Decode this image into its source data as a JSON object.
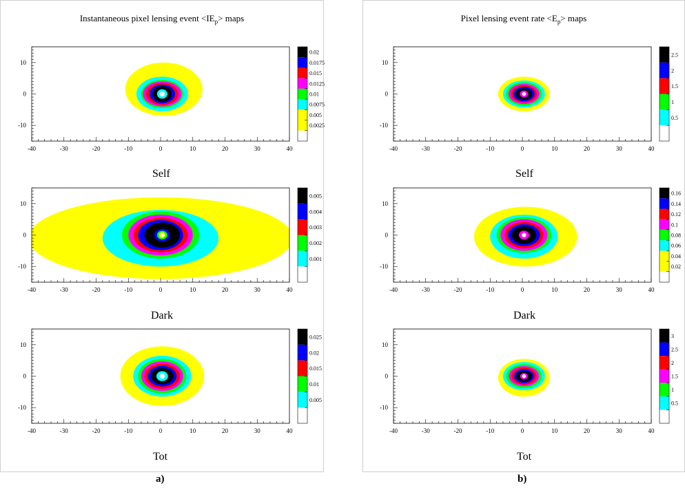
{
  "panels": [
    {
      "title": "Instantaneous pixel lensing event <IE",
      "title_sub": "p",
      "title_end": "> maps",
      "caption": "a)"
    },
    {
      "title": "Pixel lensing event rate <E",
      "title_sub": "p",
      "title_end": "> maps",
      "caption": "b)"
    }
  ],
  "chart_data": [
    {
      "type": "heatmap",
      "panel": "a",
      "label": "Self",
      "xlim": [
        -40,
        40
      ],
      "ylim": [
        -15,
        15
      ],
      "xticks": [
        -40,
        -30,
        -20,
        -10,
        0,
        10,
        20,
        30,
        40
      ],
      "yticks": [
        10,
        0,
        -10
      ],
      "colorbar": {
        "labels": [
          "0.02",
          "0.0175",
          "0.015",
          "0.0125",
          "0.01",
          "0.0075",
          "0.005",
          "0.0025"
        ]
      },
      "contours": [
        {
          "level": "0.0025",
          "rx": 12,
          "ry": 8.5,
          "cx": 1,
          "cy": 1.5,
          "color": "#ffff00"
        },
        {
          "level": "0.005",
          "rx": 8,
          "ry": 5.5,
          "cx": 0.5,
          "cy": 0,
          "color": "#00ffff"
        },
        {
          "level": "0.0075",
          "rx": 6.5,
          "ry": 4.5,
          "cx": 0.5,
          "cy": 0,
          "color": "#00ff00"
        },
        {
          "level": "0.01",
          "rx": 6,
          "ry": 4,
          "cx": 0.5,
          "cy": 0,
          "color": "#ff00ff"
        },
        {
          "level": "0.0125",
          "rx": 5,
          "ry": 3.5,
          "cx": 0.5,
          "cy": 0,
          "color": "#ff0000"
        },
        {
          "level": "0.015",
          "rx": 4,
          "ry": 3,
          "cx": 0.5,
          "cy": 0,
          "color": "#0000ff"
        },
        {
          "level": "0.0175",
          "rx": 3,
          "ry": 2.5,
          "cx": 0.5,
          "cy": 0,
          "color": "#000000"
        },
        {
          "level": "core",
          "rx": 1.6,
          "ry": 1.5,
          "cx": 0.5,
          "cy": 0,
          "color": "#00ffff"
        },
        {
          "level": "core-inner",
          "rx": 0.8,
          "ry": 0.8,
          "cx": 0.5,
          "cy": 0,
          "color": "#ffffff"
        }
      ]
    },
    {
      "type": "heatmap",
      "panel": "a",
      "label": "Dark",
      "xlim": [
        -40,
        40
      ],
      "ylim": [
        -15,
        15
      ],
      "xticks": [
        -40,
        -30,
        -20,
        -10,
        0,
        10,
        20,
        30,
        40
      ],
      "yticks": [
        10,
        0,
        -10
      ],
      "colorbar": {
        "labels": [
          "0.005",
          "0.004",
          "0.003",
          "0.002",
          "0.001"
        ]
      },
      "contours": [
        {
          "level": "yellow",
          "rx": 41,
          "ry": 13,
          "cx": 0,
          "cy": -1,
          "color": "#ffff00"
        },
        {
          "level": "cyan",
          "rx": 18,
          "ry": 9,
          "cx": 0,
          "cy": -1,
          "color": "#00ffff"
        },
        {
          "level": "green",
          "rx": 12,
          "ry": 7.5,
          "cx": 0,
          "cy": 0,
          "color": "#00ff00"
        },
        {
          "level": "magenta",
          "rx": 10,
          "ry": 6.5,
          "cx": 0,
          "cy": 0,
          "color": "#ff00ff"
        },
        {
          "level": "red",
          "rx": 8.5,
          "ry": 5.5,
          "cx": 0,
          "cy": 0,
          "color": "#ff0000"
        },
        {
          "level": "blue",
          "rx": 7,
          "ry": 4.8,
          "cx": 0,
          "cy": 0,
          "color": "#0000ff"
        },
        {
          "level": "black",
          "rx": 5.5,
          "ry": 4,
          "cx": 0.5,
          "cy": 0,
          "color": "#000000"
        },
        {
          "level": "core-blue",
          "rx": 2.5,
          "ry": 2,
          "cx": 0.5,
          "cy": 0,
          "color": "#0000ff"
        },
        {
          "level": "core-green",
          "rx": 1.6,
          "ry": 1.4,
          "cx": 0.5,
          "cy": 0,
          "color": "#00ff00"
        },
        {
          "level": "core-yellow",
          "rx": 1,
          "ry": 0.9,
          "cx": 0.5,
          "cy": 0,
          "color": "#ffff00"
        },
        {
          "level": "core-white",
          "rx": 0.5,
          "ry": 0.5,
          "cx": 0.5,
          "cy": 0,
          "color": "#ffffff"
        }
      ]
    },
    {
      "type": "heatmap",
      "panel": "a",
      "label": "Tot",
      "xlim": [
        -40,
        40
      ],
      "ylim": [
        -15,
        15
      ],
      "xticks": [
        -40,
        -30,
        -20,
        -10,
        0,
        10,
        20,
        30,
        40
      ],
      "yticks": [
        10,
        0,
        -10
      ],
      "colorbar": {
        "labels": [
          "0.025",
          "0.02",
          "0.015",
          "0.01",
          "0.005"
        ]
      },
      "contours": [
        {
          "level": "yellow",
          "rx": 13,
          "ry": 9.5,
          "cx": 0.5,
          "cy": 0,
          "color": "#ffff00"
        },
        {
          "level": "cyan",
          "rx": 9,
          "ry": 6.5,
          "cx": 0.5,
          "cy": 0,
          "color": "#00ffff"
        },
        {
          "level": "green",
          "rx": 7.5,
          "ry": 5.5,
          "cx": 0.5,
          "cy": 0,
          "color": "#00ff00"
        },
        {
          "level": "magenta",
          "rx": 6.5,
          "ry": 4.7,
          "cx": 0.5,
          "cy": 0,
          "color": "#ff00ff"
        },
        {
          "level": "red",
          "rx": 5.5,
          "ry": 4,
          "cx": 0.5,
          "cy": 0,
          "color": "#ff0000"
        },
        {
          "level": "blue",
          "rx": 4.5,
          "ry": 3.3,
          "cx": 0.5,
          "cy": 0,
          "color": "#0000ff"
        },
        {
          "level": "black",
          "rx": 3.5,
          "ry": 2.6,
          "cx": 0.5,
          "cy": 0,
          "color": "#000000"
        },
        {
          "level": "core",
          "rx": 1.8,
          "ry": 1.6,
          "cx": 0.5,
          "cy": 0,
          "color": "#00ffff"
        },
        {
          "level": "core-inner",
          "rx": 0.8,
          "ry": 0.8,
          "cx": 0.5,
          "cy": 0,
          "color": "#ffffff"
        }
      ]
    },
    {
      "type": "heatmap",
      "panel": "b",
      "label": "Self",
      "xlim": [
        -40,
        40
      ],
      "ylim": [
        -15,
        15
      ],
      "xticks": [
        -40,
        -30,
        -20,
        -10,
        0,
        10,
        20,
        30,
        40
      ],
      "yticks": [
        10,
        0,
        -10
      ],
      "colorbar": {
        "labels": [
          "2.5",
          "2",
          "1.5",
          "1",
          "0.5"
        ]
      },
      "contours": [
        {
          "level": "yellow",
          "rx": 8,
          "ry": 5.5,
          "cx": 0.5,
          "cy": 0,
          "color": "#ffff00"
        },
        {
          "level": "cyan",
          "rx": 6.5,
          "ry": 4.3,
          "cx": 0.5,
          "cy": 0,
          "color": "#00ffff"
        },
        {
          "level": "green",
          "rx": 5.5,
          "ry": 3.7,
          "cx": 0.5,
          "cy": 0,
          "color": "#00ff00"
        },
        {
          "level": "magenta",
          "rx": 4.8,
          "ry": 3.2,
          "cx": 0.5,
          "cy": 0,
          "color": "#ff00ff"
        },
        {
          "level": "red",
          "rx": 4,
          "ry": 2.7,
          "cx": 0.5,
          "cy": 0,
          "color": "#ff0000"
        },
        {
          "level": "blue",
          "rx": 3.3,
          "ry": 2.3,
          "cx": 0.5,
          "cy": 0,
          "color": "#0000ff"
        },
        {
          "level": "black",
          "rx": 2.5,
          "ry": 1.8,
          "cx": 0.5,
          "cy": 0,
          "color": "#000000"
        },
        {
          "level": "core",
          "rx": 1.3,
          "ry": 1.1,
          "cx": 0.5,
          "cy": 0,
          "color": "#ff00ff"
        },
        {
          "level": "core-inner",
          "rx": 0.6,
          "ry": 0.6,
          "cx": 0.5,
          "cy": 0,
          "color": "#ffffff"
        }
      ]
    },
    {
      "type": "heatmap",
      "panel": "b",
      "label": "Dark",
      "xlim": [
        -40,
        40
      ],
      "ylim": [
        -15,
        15
      ],
      "xticks": [
        -40,
        -30,
        -20,
        -10,
        0,
        10,
        20,
        30,
        40
      ],
      "yticks": [
        10,
        0,
        -10
      ],
      "colorbar": {
        "labels": [
          "0.16",
          "0.14",
          "0.12",
          "0.1",
          "0.08",
          "0.06",
          "0.04",
          "0.02"
        ]
      },
      "contours": [
        {
          "level": "yellow",
          "rx": 16,
          "ry": 9.5,
          "cx": 1,
          "cy": -0.5,
          "color": "#ffff00"
        },
        {
          "level": "cyan",
          "rx": 10.5,
          "ry": 7,
          "cx": 0.5,
          "cy": -0.5,
          "color": "#00ffff"
        },
        {
          "level": "green",
          "rx": 8.5,
          "ry": 5.7,
          "cx": 0.5,
          "cy": 0,
          "color": "#00ff00"
        },
        {
          "level": "magenta",
          "rx": 7.3,
          "ry": 5,
          "cx": 0.5,
          "cy": 0,
          "color": "#ff00ff"
        },
        {
          "level": "red",
          "rx": 6,
          "ry": 4.2,
          "cx": 0.5,
          "cy": 0,
          "color": "#ff0000"
        },
        {
          "level": "blue",
          "rx": 5,
          "ry": 3.5,
          "cx": 0.5,
          "cy": 0,
          "color": "#0000ff"
        },
        {
          "level": "black",
          "rx": 3.8,
          "ry": 2.8,
          "cx": 0.5,
          "cy": 0,
          "color": "#000000"
        },
        {
          "level": "core",
          "rx": 1.6,
          "ry": 1.4,
          "cx": 0.5,
          "cy": 0,
          "color": "#ff00ff"
        },
        {
          "level": "core-inner",
          "rx": 0.7,
          "ry": 0.7,
          "cx": 0.5,
          "cy": 0,
          "color": "#ffffff"
        }
      ]
    },
    {
      "type": "heatmap",
      "panel": "b",
      "label": "Tot",
      "xlim": [
        -40,
        40
      ],
      "ylim": [
        -15,
        15
      ],
      "xticks": [
        -40,
        -30,
        -20,
        -10,
        0,
        10,
        20,
        30,
        40
      ],
      "yticks": [
        10,
        0,
        -10
      ],
      "colorbar": {
        "labels": [
          "3",
          "2.5",
          "2",
          "1.5",
          "1",
          "0.5"
        ]
      },
      "contours": [
        {
          "level": "yellow",
          "rx": 8,
          "ry": 6,
          "cx": 0.5,
          "cy": -0.5,
          "color": "#ffff00"
        },
        {
          "level": "cyan",
          "rx": 6.5,
          "ry": 4.5,
          "cx": 0.5,
          "cy": 0,
          "color": "#00ffff"
        },
        {
          "level": "green",
          "rx": 5.5,
          "ry": 3.8,
          "cx": 0.5,
          "cy": 0,
          "color": "#00ff00"
        },
        {
          "level": "magenta",
          "rx": 4.7,
          "ry": 3.2,
          "cx": 0.5,
          "cy": 0,
          "color": "#ff00ff"
        },
        {
          "level": "red",
          "rx": 3.9,
          "ry": 2.7,
          "cx": 0.5,
          "cy": 0,
          "color": "#ff0000"
        },
        {
          "level": "blue",
          "rx": 3.1,
          "ry": 2.2,
          "cx": 0.5,
          "cy": 0,
          "color": "#0000ff"
        },
        {
          "level": "black",
          "rx": 2.4,
          "ry": 1.7,
          "cx": 0.5,
          "cy": 0,
          "color": "#000000"
        },
        {
          "level": "core",
          "rx": 1.2,
          "ry": 1,
          "cx": 0.5,
          "cy": 0,
          "color": "#ff00ff"
        },
        {
          "level": "core-inner",
          "rx": 0.6,
          "ry": 0.6,
          "cx": 0.5,
          "cy": 0,
          "color": "#ffffff"
        }
      ]
    }
  ]
}
